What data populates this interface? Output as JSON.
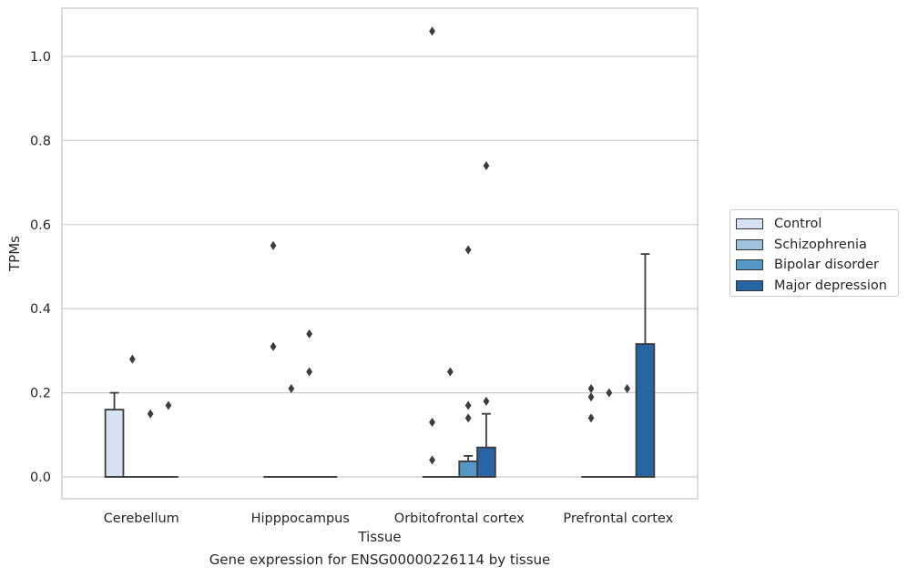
{
  "chart_data": {
    "type": "box",
    "xlabel": "Tissue",
    "ylabel": "TPMs",
    "ylim": [
      -0.05,
      1.12
    ],
    "yticks": [
      "0.0",
      "0.2",
      "0.4",
      "0.6",
      "0.8",
      "1.0"
    ],
    "ytick_values": [
      0.0,
      0.2,
      0.4,
      0.6,
      0.8,
      1.0
    ],
    "grid": true,
    "legend_position": "right",
    "categories": [
      "Cerebellum",
      "Hipppocampus",
      "Orbitofrontal cortex",
      "Prefrontal cortex"
    ],
    "series": [
      {
        "name": "Control",
        "color": "#d4e2f1",
        "boxes": [
          {
            "q1": 0.0,
            "median": 0.0,
            "q3": 0.16,
            "whisker_low": 0.0,
            "whisker_high": 0.2,
            "outliers": []
          },
          {
            "q1": 0.0,
            "median": 0.0,
            "q3": 0.0,
            "whisker_low": 0.0,
            "whisker_high": 0.0,
            "outliers": [
              0.55,
              0.31
            ]
          },
          {
            "q1": 0.0,
            "median": 0.0,
            "q3": 0.0,
            "whisker_low": 0.0,
            "whisker_high": 0.0,
            "outliers": [
              1.06,
              0.13,
              0.04
            ]
          },
          {
            "q1": 0.0,
            "median": 0.0,
            "q3": 0.0,
            "whisker_low": 0.0,
            "whisker_high": 0.0,
            "outliers": [
              0.21,
              0.19,
              0.14
            ]
          }
        ]
      },
      {
        "name": "Schizophrenia",
        "color": "#9dc3de",
        "boxes": [
          {
            "q1": 0.0,
            "median": 0.0,
            "q3": 0.0,
            "whisker_low": 0.0,
            "whisker_high": 0.0,
            "outliers": [
              0.28
            ]
          },
          {
            "q1": 0.0,
            "median": 0.0,
            "q3": 0.0,
            "whisker_low": 0.0,
            "whisker_high": 0.0,
            "outliers": [
              0.21
            ]
          },
          {
            "q1": 0.0,
            "median": 0.0,
            "q3": 0.0,
            "whisker_low": 0.0,
            "whisker_high": 0.0,
            "outliers": [
              0.25
            ]
          },
          {
            "q1": 0.0,
            "median": 0.0,
            "q3": 0.0,
            "whisker_low": 0.0,
            "whisker_high": 0.0,
            "outliers": [
              0.2
            ]
          }
        ]
      },
      {
        "name": "Bipolar disorder",
        "color": "#5496c4",
        "boxes": [
          {
            "q1": 0.0,
            "median": 0.0,
            "q3": 0.0,
            "whisker_low": 0.0,
            "whisker_high": 0.0,
            "outliers": [
              0.15
            ]
          },
          {
            "q1": 0.0,
            "median": 0.0,
            "q3": 0.0,
            "whisker_low": 0.0,
            "whisker_high": 0.0,
            "outliers": [
              0.34,
              0.25
            ]
          },
          {
            "q1": 0.0,
            "median": 0.0,
            "q3": 0.037,
            "whisker_low": 0.0,
            "whisker_high": 0.05,
            "outliers": [
              0.54,
              0.17,
              0.14
            ]
          },
          {
            "q1": 0.0,
            "median": 0.0,
            "q3": 0.0,
            "whisker_low": 0.0,
            "whisker_high": 0.0,
            "outliers": [
              0.21
            ]
          }
        ]
      },
      {
        "name": "Major depression",
        "color": "#2764a3",
        "boxes": [
          {
            "q1": 0.0,
            "median": 0.0,
            "q3": 0.0,
            "whisker_low": 0.0,
            "whisker_high": 0.0,
            "outliers": [
              0.17
            ]
          },
          {
            "q1": 0.0,
            "median": 0.0,
            "q3": 0.0,
            "whisker_low": 0.0,
            "whisker_high": 0.0,
            "outliers": []
          },
          {
            "q1": 0.0,
            "median": 0.0,
            "q3": 0.07,
            "whisker_low": 0.0,
            "whisker_high": 0.15,
            "outliers": [
              0.74,
              0.18
            ]
          },
          {
            "q1": 0.0,
            "median": 0.0,
            "q3": 0.316,
            "whisker_low": 0.0,
            "whisker_high": 0.53,
            "outliers": []
          }
        ]
      }
    ],
    "caption": "Gene expression for ENSG00000226114 by tissue"
  }
}
